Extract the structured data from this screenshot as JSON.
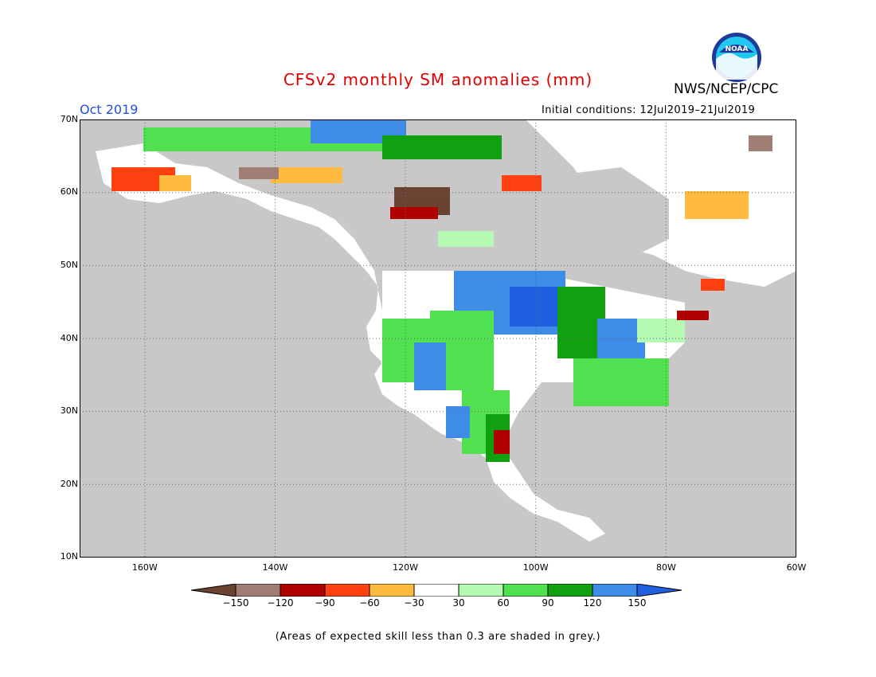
{
  "title": "CFSv2 monthly SM anomalies (mm)",
  "org": "NWS/NCEP/CPC",
  "logo_text": "NOAA",
  "month": "Oct 2019",
  "initial_conditions": "Initial conditions: 12Jul2019–21Jul2019",
  "lat_labels": [
    "70N",
    "60N",
    "50N",
    "40N",
    "30N",
    "20N",
    "10N"
  ],
  "lon_labels": [
    "160W",
    "140W",
    "120W",
    "100W",
    "80W",
    "60W"
  ],
  "colorbar": {
    "labels": [
      "−150",
      "−120",
      "−90",
      "−60",
      "−30",
      "30",
      "60",
      "90",
      "120",
      "150"
    ],
    "colors": [
      "#6b4332",
      "#a07e73",
      "#b00000",
      "#ff4010",
      "#ffbb40",
      "#ffffff",
      "#b4fab4",
      "#50e050",
      "#10a010",
      "#3c8ce8",
      "#2060e0"
    ]
  },
  "footnote": "(Areas of expected skill less than 0.3 are shaded in grey.)",
  "colors": {
    "ocean": "#c8c8c8",
    "title": "#e00000",
    "month": "#2050e0"
  }
}
